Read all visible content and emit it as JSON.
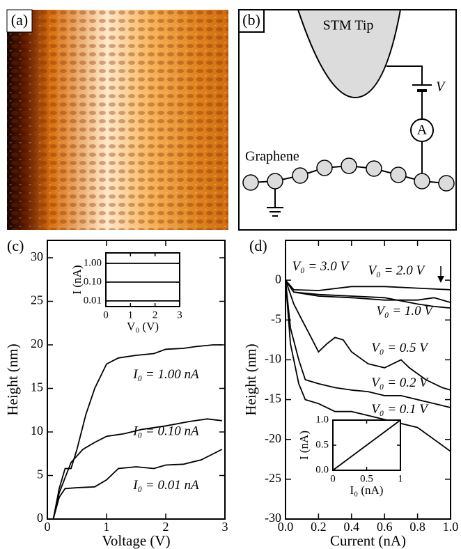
{
  "panel_a": {
    "label": "(a)"
  },
  "panel_b": {
    "label": "(b)",
    "tip_label": "STM Tip",
    "voltage_label": "V",
    "ammeter_label": "A",
    "sample_label": "Graphene"
  },
  "chart_data": [
    {
      "type": "line",
      "panel_label": "(c)",
      "x_label": "Voltage (V)",
      "y_label": "Height (nm)",
      "xlim": [
        0,
        3
      ],
      "ylim": [
        0,
        32
      ],
      "xticks": [
        0,
        1,
        2,
        3
      ],
      "yticks": [
        0,
        5,
        10,
        15,
        20,
        25,
        30
      ],
      "series": [
        {
          "name": "I₀ = 1.00 nA",
          "color": "#000000",
          "x": [
            0.1,
            0.2,
            0.3,
            0.4,
            0.5,
            0.65,
            0.8,
            1.0,
            1.2,
            1.5,
            1.8,
            2.0,
            2.3,
            2.5,
            2.8,
            2.95
          ],
          "values": [
            0,
            3.5,
            5.8,
            5.8,
            8,
            12,
            15,
            17.8,
            18.5,
            18.8,
            19,
            19.5,
            19.6,
            19.8,
            20,
            20
          ]
        },
        {
          "name": "I₀ = 0.10 nA",
          "color": "#000000",
          "x": [
            0.1,
            0.2,
            0.4,
            0.6,
            0.8,
            1.0,
            1.3,
            1.6,
            2.0,
            2.4,
            2.7,
            2.95
          ],
          "values": [
            0,
            3,
            6.5,
            8,
            8.8,
            9.5,
            9.8,
            10.3,
            10.7,
            11.2,
            11.5,
            11.3
          ]
        },
        {
          "name": "I₀ = 0.01 nA",
          "color": "#000000",
          "x": [
            0.1,
            0.2,
            0.3,
            0.5,
            0.8,
            1.0,
            1.2,
            1.5,
            1.8,
            2.0,
            2.3,
            2.6,
            2.95
          ],
          "values": [
            0,
            2.5,
            3.5,
            3.6,
            3.7,
            4.5,
            5.8,
            6.0,
            5.8,
            6.2,
            6.3,
            6.8,
            8
          ]
        }
      ]
    },
    {
      "type": "line",
      "x_label": "V₀ (V)",
      "y_label": "I (nA)",
      "ylog": true,
      "xlim": [
        0,
        3
      ],
      "ylim": [
        0.005,
        3.6
      ],
      "xticks": [
        0,
        1,
        2,
        3
      ],
      "yticks": [
        0.01,
        {
          "value": 0.1,
          "label": "0.10"
        },
        {
          "value": 1,
          "label": "1.00"
        }
      ],
      "series": [
        {
          "color": "#000000",
          "x": [
            0,
            1,
            2,
            3
          ],
          "values": [
            1,
            1,
            1,
            1
          ]
        },
        {
          "color": "#000000",
          "x": [
            0,
            1,
            2,
            3
          ],
          "values": [
            0.1,
            0.1,
            0.1,
            0.1
          ]
        },
        {
          "color": "#000000",
          "x": [
            0,
            1,
            2,
            3
          ],
          "values": [
            0.01,
            0.01,
            0.01,
            0.01
          ]
        }
      ]
    },
    {
      "type": "line",
      "panel_label": "(d)",
      "x_label": "Current (nA)",
      "y_label": "Height (nm)",
      "xlim": [
        0,
        1
      ],
      "ylim": [
        -30,
        5
      ],
      "xticks": [
        {
          "value": 0,
          "label": "0.0"
        },
        0.2,
        0.4,
        0.6,
        0.8,
        {
          "value": 1,
          "label": "1.0"
        }
      ],
      "yticks": [
        -30,
        -25,
        -20,
        -15,
        -10,
        -5,
        0
      ],
      "series": [
        {
          "name": "V₀ = 3.0 V",
          "color": "#000000",
          "x": [
            0,
            0.05,
            0.2,
            0.4,
            0.6,
            0.8,
            1.0
          ],
          "values": [
            0,
            -1.2,
            -1.3,
            -0.8,
            -0.8,
            -1,
            -1.2
          ]
        },
        {
          "name": "V₀ = 2.0 V",
          "color": "#000000",
          "x": [
            0,
            0.05,
            0.2,
            0.4,
            0.6,
            0.8,
            0.9,
            1.0
          ],
          "values": [
            0,
            -1.5,
            -2,
            -2.2,
            -2.5,
            -2.5,
            -2.2,
            -2.8
          ]
        },
        {
          "name": "V₀ = 1.0 V",
          "color": "#000000",
          "x": [
            0,
            0.05,
            0.2,
            0.4,
            0.6,
            0.8,
            0.9,
            1.0
          ],
          "values": [
            0,
            -1.5,
            -1.8,
            -2,
            -2.2,
            -3,
            -3.3,
            -3.5
          ]
        },
        {
          "name": "V₀ = 0.5 V",
          "color": "#000000",
          "x": [
            0,
            0.05,
            0.1,
            0.15,
            0.2,
            0.25,
            0.3,
            0.35,
            0.4,
            0.5,
            0.6,
            0.7,
            0.75,
            0.85,
            0.95,
            1.0
          ],
          "values": [
            0,
            -3,
            -5,
            -7,
            -9,
            -8,
            -7.2,
            -7.5,
            -9,
            -10.5,
            -11,
            -10,
            -11,
            -12.5,
            -13.5,
            -13.8
          ]
        },
        {
          "name": "V₀ = 0.2 V",
          "color": "#000000",
          "x": [
            0,
            0.03,
            0.08,
            0.12,
            0.2,
            0.3,
            0.4,
            0.5,
            0.6,
            0.7,
            0.8,
            0.9,
            1.0
          ],
          "values": [
            0,
            -6,
            -10,
            -12.5,
            -13,
            -13.5,
            -13.8,
            -14,
            -14.5,
            -14.5,
            -15,
            -15.5,
            -16
          ]
        },
        {
          "name": "V₀ = 0.1 V",
          "color": "#000000",
          "x": [
            0,
            0.03,
            0.08,
            0.12,
            0.2,
            0.3,
            0.4,
            0.5,
            0.6,
            0.7,
            0.8,
            0.9,
            1.0
          ],
          "values": [
            0,
            -8,
            -13,
            -15,
            -15.5,
            -16.5,
            -16.5,
            -17,
            -17.5,
            -18,
            -18.5,
            -20,
            -21.5
          ]
        }
      ]
    },
    {
      "type": "line",
      "x_label": "I₀ (nA)",
      "y_label": "I (nA)",
      "xlim": [
        0,
        1
      ],
      "ylim": [
        0,
        1
      ],
      "xticks": [
        0,
        0.5,
        1
      ],
      "yticks": [
        {
          "value": 0,
          "label": "0.0"
        },
        0.5,
        {
          "value": 1,
          "label": "1.0"
        }
      ],
      "series": [
        {
          "color": "#000000",
          "x": [
            0,
            0.25,
            0.5,
            0.75,
            1
          ],
          "values": [
            0,
            0.25,
            0.5,
            0.75,
            1
          ]
        }
      ]
    }
  ]
}
